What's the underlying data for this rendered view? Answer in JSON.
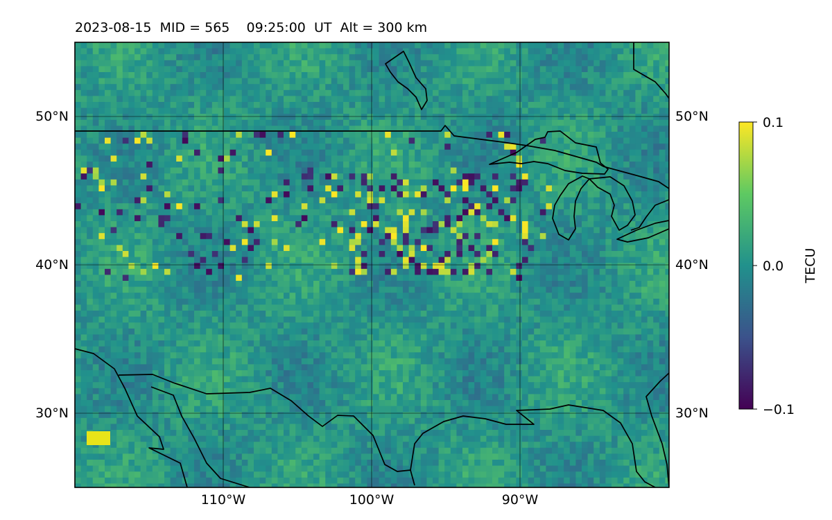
{
  "title": "2023-08-15  MID = 565    09:25:00  UT  Alt = 300 km",
  "map": {
    "lon_range": [
      -120,
      -80
    ],
    "lat_range": [
      25,
      55
    ],
    "lat_gridlines": [
      30,
      40,
      50
    ],
    "lon_gridlines": [
      -110,
      -100,
      -90
    ],
    "lat_tick_labels": [
      "30°N",
      "40°N",
      "50°N"
    ],
    "lon_tick_labels": [
      "110°W",
      "100°W",
      "90°W"
    ],
    "field": "TEC anomaly (detrended total electron content), per-cell values ≈ −0.1 to 0.1",
    "coastline_color": "#000000",
    "gridline_color": "#000000"
  },
  "colorbar": {
    "label": "TECU",
    "min": -0.1,
    "max": 0.1,
    "tick_labels": [
      "0.1",
      "0.0",
      "−0.1"
    ],
    "colormap": "viridis",
    "colors": [
      "#440154",
      "#3b528b",
      "#21918c",
      "#5ec962",
      "#fde725"
    ]
  }
}
